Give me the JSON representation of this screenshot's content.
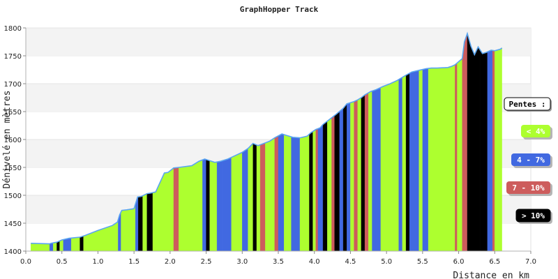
{
  "chart_data": {
    "type": "area",
    "title": "GraphHopper Track",
    "xlabel": "Distance en km",
    "ylabel": "Dénivelé en mètres",
    "xlim": [
      0,
      7
    ],
    "ylim": [
      1400,
      1800
    ],
    "x_ticks": [
      "0.0",
      "0.5",
      "1.0",
      "1.5",
      "2.0",
      "2.5",
      "3.0",
      "3.5",
      "4.0",
      "4.5",
      "5.0",
      "5.5",
      "6.0",
      "6.5",
      "7.0"
    ],
    "y_ticks": [
      "1400",
      "1450",
      "1500",
      "1550",
      "1600",
      "1650",
      "1700",
      "1750",
      "1800"
    ],
    "grid": "horizontal bands",
    "legend": {
      "title": "Pentes :",
      "placement": "right",
      "items": [
        {
          "label": "< 4%",
          "color": "#adff2f",
          "text_color": "#ffffff"
        },
        {
          "label": "4 - 7%",
          "color": "#4169e1",
          "text_color": "#ffffff"
        },
        {
          "label": "7 - 10%",
          "color": "#cd5c5c",
          "text_color": "#ffffff"
        },
        {
          "label": "> 10%",
          "color": "#000000",
          "text_color": "#ffffff"
        }
      ]
    },
    "colors": {
      "lt4": "#adff2f",
      "4to7": "#4169e1",
      "7to10": "#cd5c5c",
      "gt10": "#000000",
      "line": "#5aa5f0"
    },
    "profile": {
      "x": [
        0.07,
        0.33,
        0.35,
        0.43,
        0.5,
        0.6,
        0.75,
        0.82,
        1.0,
        1.2,
        1.27,
        1.3,
        1.33,
        1.4,
        1.5,
        1.55,
        1.6,
        1.68,
        1.73,
        1.8,
        1.92,
        1.97,
        2.05,
        2.12,
        2.3,
        2.4,
        2.48,
        2.55,
        2.62,
        2.7,
        2.8,
        2.9,
        3.0,
        3.08,
        3.15,
        3.22,
        3.3,
        3.38,
        3.45,
        3.55,
        3.6,
        3.7,
        3.8,
        3.9,
        3.95,
        4.02,
        4.08,
        4.12,
        4.2,
        4.3,
        4.4,
        4.45,
        4.55,
        4.6,
        4.65,
        4.7,
        4.78,
        4.85,
        4.95,
        5.05,
        5.15,
        5.2,
        5.28,
        5.35,
        5.45,
        5.55,
        5.62,
        5.7,
        5.85,
        5.9,
        5.95,
        6.05,
        6.08,
        6.12,
        6.17,
        6.22,
        6.27,
        6.33,
        6.38,
        6.45,
        6.5,
        6.58,
        6.6
      ],
      "y": [
        1414,
        1413,
        1414,
        1416,
        1420,
        1423,
        1425,
        1428,
        1437,
        1446,
        1452,
        1465,
        1473,
        1474,
        1476,
        1497,
        1498,
        1503,
        1504,
        1506,
        1540,
        1541,
        1549,
        1550,
        1553,
        1561,
        1565,
        1562,
        1559,
        1561,
        1565,
        1571,
        1577,
        1584,
        1593,
        1589,
        1593,
        1597,
        1603,
        1610,
        1608,
        1604,
        1603,
        1606,
        1612,
        1618,
        1621,
        1627,
        1635,
        1645,
        1656,
        1664,
        1668,
        1671,
        1675,
        1680,
        1686,
        1689,
        1695,
        1700,
        1706,
        1710,
        1716,
        1721,
        1724,
        1727,
        1728,
        1728,
        1729,
        1731,
        1734,
        1745,
        1775,
        1790,
        1767,
        1752,
        1766,
        1754,
        1756,
        1760,
        1759,
        1762,
        1764
      ]
    },
    "segments": [
      {
        "x": [
          0.07,
          0.33
        ],
        "slope": "lt4"
      },
      {
        "x": [
          0.33,
          0.38
        ],
        "slope": "4to7"
      },
      {
        "x": [
          0.38,
          0.43
        ],
        "slope": "lt4"
      },
      {
        "x": [
          0.43,
          0.47
        ],
        "slope": "gt10"
      },
      {
        "x": [
          0.47,
          0.52
        ],
        "slope": "lt4"
      },
      {
        "x": [
          0.52,
          0.63
        ],
        "slope": "4to7"
      },
      {
        "x": [
          0.63,
          0.75
        ],
        "slope": "lt4"
      },
      {
        "x": [
          0.75,
          0.8
        ],
        "slope": "gt10"
      },
      {
        "x": [
          0.8,
          1.28
        ],
        "slope": "lt4"
      },
      {
        "x": [
          1.28,
          1.32
        ],
        "slope": "4to7"
      },
      {
        "x": [
          1.32,
          1.52
        ],
        "slope": "lt4"
      },
      {
        "x": [
          1.52,
          1.56
        ],
        "slope": "4to7"
      },
      {
        "x": [
          1.56,
          1.62
        ],
        "slope": "gt10"
      },
      {
        "x": [
          1.62,
          1.68
        ],
        "slope": "lt4"
      },
      {
        "x": [
          1.68,
          1.76
        ],
        "slope": "gt10"
      },
      {
        "x": [
          1.76,
          2.05
        ],
        "slope": "lt4"
      },
      {
        "x": [
          2.05,
          2.12
        ],
        "slope": "7to10"
      },
      {
        "x": [
          2.12,
          2.45
        ],
        "slope": "lt4"
      },
      {
        "x": [
          2.45,
          2.5
        ],
        "slope": "4to7"
      },
      {
        "x": [
          2.5,
          2.55
        ],
        "slope": "gt10"
      },
      {
        "x": [
          2.55,
          2.65
        ],
        "slope": "lt4"
      },
      {
        "x": [
          2.65,
          2.72
        ],
        "slope": "4to7"
      },
      {
        "x": [
          2.72,
          2.85
        ],
        "slope": "4to7"
      },
      {
        "x": [
          2.85,
          3.0
        ],
        "slope": "lt4"
      },
      {
        "x": [
          3.0,
          3.08
        ],
        "slope": "4to7"
      },
      {
        "x": [
          3.08,
          3.15
        ],
        "slope": "lt4"
      },
      {
        "x": [
          3.15,
          3.2
        ],
        "slope": "gt10"
      },
      {
        "x": [
          3.2,
          3.25
        ],
        "slope": "lt4"
      },
      {
        "x": [
          3.25,
          3.32
        ],
        "slope": "7to10"
      },
      {
        "x": [
          3.32,
          3.45
        ],
        "slope": "lt4"
      },
      {
        "x": [
          3.45,
          3.5
        ],
        "slope": "7to10"
      },
      {
        "x": [
          3.5,
          3.58
        ],
        "slope": "4to7"
      },
      {
        "x": [
          3.58,
          3.68
        ],
        "slope": "lt4"
      },
      {
        "x": [
          3.68,
          3.8
        ],
        "slope": "4to7"
      },
      {
        "x": [
          3.8,
          3.93
        ],
        "slope": "lt4"
      },
      {
        "x": [
          3.93,
          3.98
        ],
        "slope": "gt10"
      },
      {
        "x": [
          3.98,
          4.02
        ],
        "slope": "lt4"
      },
      {
        "x": [
          4.02,
          4.05
        ],
        "slope": "7to10"
      },
      {
        "x": [
          4.05,
          4.12
        ],
        "slope": "4to7"
      },
      {
        "x": [
          4.12,
          4.18
        ],
        "slope": "gt10"
      },
      {
        "x": [
          4.18,
          4.24
        ],
        "slope": "lt4"
      },
      {
        "x": [
          4.24,
          4.28
        ],
        "slope": "7to10"
      },
      {
        "x": [
          4.28,
          4.35
        ],
        "slope": "gt10"
      },
      {
        "x": [
          4.35,
          4.4
        ],
        "slope": "4to7"
      },
      {
        "x": [
          4.4,
          4.45
        ],
        "slope": "gt10"
      },
      {
        "x": [
          4.45,
          4.5
        ],
        "slope": "4to7"
      },
      {
        "x": [
          4.5,
          4.55
        ],
        "slope": "lt4"
      },
      {
        "x": [
          4.55,
          4.6
        ],
        "slope": "7to10"
      },
      {
        "x": [
          4.6,
          4.65
        ],
        "slope": "lt4"
      },
      {
        "x": [
          4.65,
          4.7
        ],
        "slope": "gt10"
      },
      {
        "x": [
          4.7,
          4.75
        ],
        "slope": "7to10"
      },
      {
        "x": [
          4.75,
          4.8
        ],
        "slope": "lt4"
      },
      {
        "x": [
          4.8,
          4.92
        ],
        "slope": "4to7"
      },
      {
        "x": [
          4.92,
          5.17
        ],
        "slope": "lt4"
      },
      {
        "x": [
          5.17,
          5.22
        ],
        "slope": "4to7"
      },
      {
        "x": [
          5.22,
          5.27
        ],
        "slope": "lt4"
      },
      {
        "x": [
          5.27,
          5.32
        ],
        "slope": "gt10"
      },
      {
        "x": [
          5.32,
          5.45
        ],
        "slope": "4to7"
      },
      {
        "x": [
          5.45,
          5.5
        ],
        "slope": "lt4"
      },
      {
        "x": [
          5.5,
          5.58
        ],
        "slope": "4to7"
      },
      {
        "x": [
          5.58,
          5.95
        ],
        "slope": "lt4"
      },
      {
        "x": [
          5.95,
          5.98
        ],
        "slope": "7to10"
      },
      {
        "x": [
          5.98,
          6.05
        ],
        "slope": "lt4"
      },
      {
        "x": [
          6.05,
          6.12
        ],
        "slope": "7to10"
      },
      {
        "x": [
          6.12,
          6.3
        ],
        "slope": "gt10"
      },
      {
        "x": [
          6.3,
          6.4
        ],
        "slope": "gt10"
      },
      {
        "x": [
          6.4,
          6.47
        ],
        "slope": "4to7"
      },
      {
        "x": [
          6.47,
          6.5
        ],
        "slope": "7to10"
      },
      {
        "x": [
          6.5,
          6.6
        ],
        "slope": "lt4"
      }
    ]
  }
}
